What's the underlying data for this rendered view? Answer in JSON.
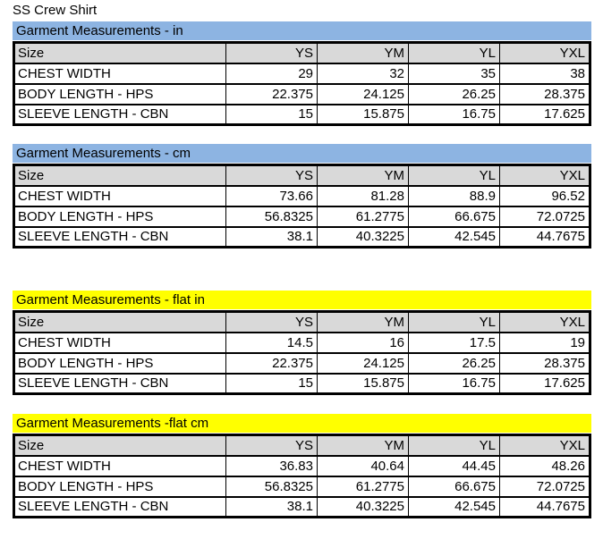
{
  "page_title": "SS Crew Shirt",
  "colors": {
    "blue_banner": "#8DB4E2",
    "yellow_banner": "#FFFF00",
    "header_row_bg": "#D9D9D9",
    "border": "#000000"
  },
  "columns": {
    "size_label": "Size",
    "sizes": [
      "YS",
      "YM",
      "YL",
      "YXL"
    ]
  },
  "tables": [
    {
      "title": "Garment Measurements - in",
      "banner_color": "#8DB4E2",
      "rows": [
        {
          "label": "CHEST WIDTH",
          "values": [
            "29",
            "32",
            "35",
            "38"
          ]
        },
        {
          "label": "BODY LENGTH - HPS",
          "values": [
            "22.375",
            "24.125",
            "26.25",
            "28.375"
          ]
        },
        {
          "label": "SLEEVE LENGTH - CBN",
          "values": [
            "15",
            "15.875",
            "16.75",
            "17.625"
          ]
        }
      ]
    },
    {
      "title": "Garment Measurements - cm",
      "banner_color": "#8DB4E2",
      "rows": [
        {
          "label": "CHEST WIDTH",
          "values": [
            "73.66",
            "81.28",
            "88.9",
            "96.52"
          ]
        },
        {
          "label": "BODY LENGTH - HPS",
          "values": [
            "56.8325",
            "61.2775",
            "66.675",
            "72.0725"
          ]
        },
        {
          "label": "SLEEVE LENGTH - CBN",
          "values": [
            "38.1",
            "40.3225",
            "42.545",
            "44.7675"
          ]
        }
      ]
    },
    {
      "title": "Garment Measurements - flat in",
      "banner_color": "#FFFF00",
      "rows": [
        {
          "label": "CHEST WIDTH",
          "values": [
            "14.5",
            "16",
            "17.5",
            "19"
          ]
        },
        {
          "label": "BODY LENGTH - HPS",
          "values": [
            "22.375",
            "24.125",
            "26.25",
            "28.375"
          ]
        },
        {
          "label": "SLEEVE LENGTH - CBN",
          "values": [
            "15",
            "15.875",
            "16.75",
            "17.625"
          ]
        }
      ]
    },
    {
      "title": "Garment Measurements -flat cm",
      "banner_color": "#FFFF00",
      "rows": [
        {
          "label": "CHEST WIDTH",
          "values": [
            "36.83",
            "40.64",
            "44.45",
            "48.26"
          ]
        },
        {
          "label": "BODY LENGTH - HPS",
          "values": [
            "56.8325",
            "61.2775",
            "66.675",
            "72.0725"
          ]
        },
        {
          "label": "SLEEVE LENGTH - CBN",
          "values": [
            "38.1",
            "40.3225",
            "42.545",
            "44.7675"
          ]
        }
      ]
    }
  ]
}
